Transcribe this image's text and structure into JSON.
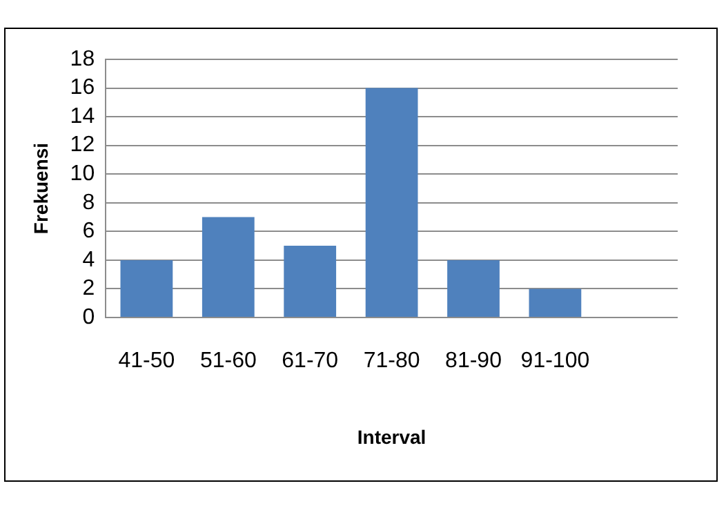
{
  "chart_data": {
    "type": "bar",
    "xlabel": "Interval",
    "ylabel": "Frekuensi",
    "categories": [
      "41-50",
      "51-60",
      "61-70",
      "71-80",
      "81-90",
      "91-100",
      null
    ],
    "values": [
      4,
      7,
      5,
      16,
      4,
      2,
      null
    ],
    "color": "#4f81bd",
    "ylim": [
      0,
      18
    ],
    "yticks": [
      0,
      2,
      4,
      6,
      8,
      10,
      12,
      14,
      16,
      18
    ],
    "grid": "y",
    "legend": false
  }
}
